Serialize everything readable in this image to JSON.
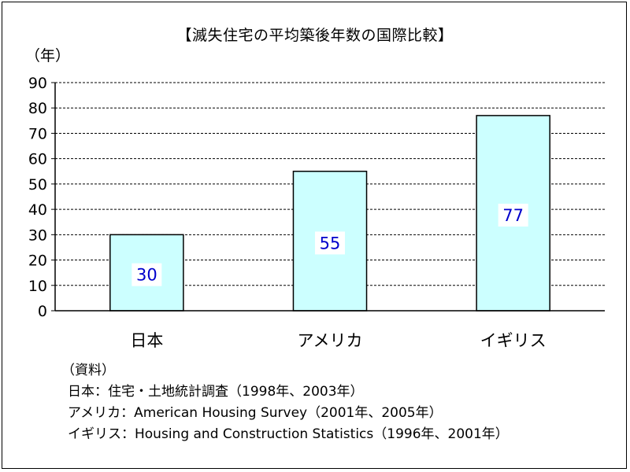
{
  "chart_data": {
    "type": "bar",
    "title": "【滅失住宅の平均築後年数の国際比較】",
    "ylabel": "（年）",
    "xlabel": "",
    "categories": [
      "日本",
      "アメリカ",
      "イギリス"
    ],
    "values": [
      30,
      55,
      77
    ],
    "data_labels": [
      "30",
      "55",
      "77"
    ],
    "ylim": [
      0,
      90
    ],
    "yticks": [
      "0",
      "10",
      "20",
      "30",
      "40",
      "50",
      "60",
      "70",
      "80",
      "90"
    ],
    "grid": true,
    "grid_style": "dashed",
    "legend": "none",
    "bar_color": "#ccffff",
    "bar_edge_color": "#000000",
    "data_label_color": "#0000cc"
  },
  "source": {
    "heading": "（資料）",
    "lines": [
      "日本：住宅・土地統計調査（1998年、2003年）",
      "アメリカ：American Housing Survey（2001年、2005年）",
      "イギリス：Housing and Construction Statistics（1996年、2001年）"
    ]
  }
}
